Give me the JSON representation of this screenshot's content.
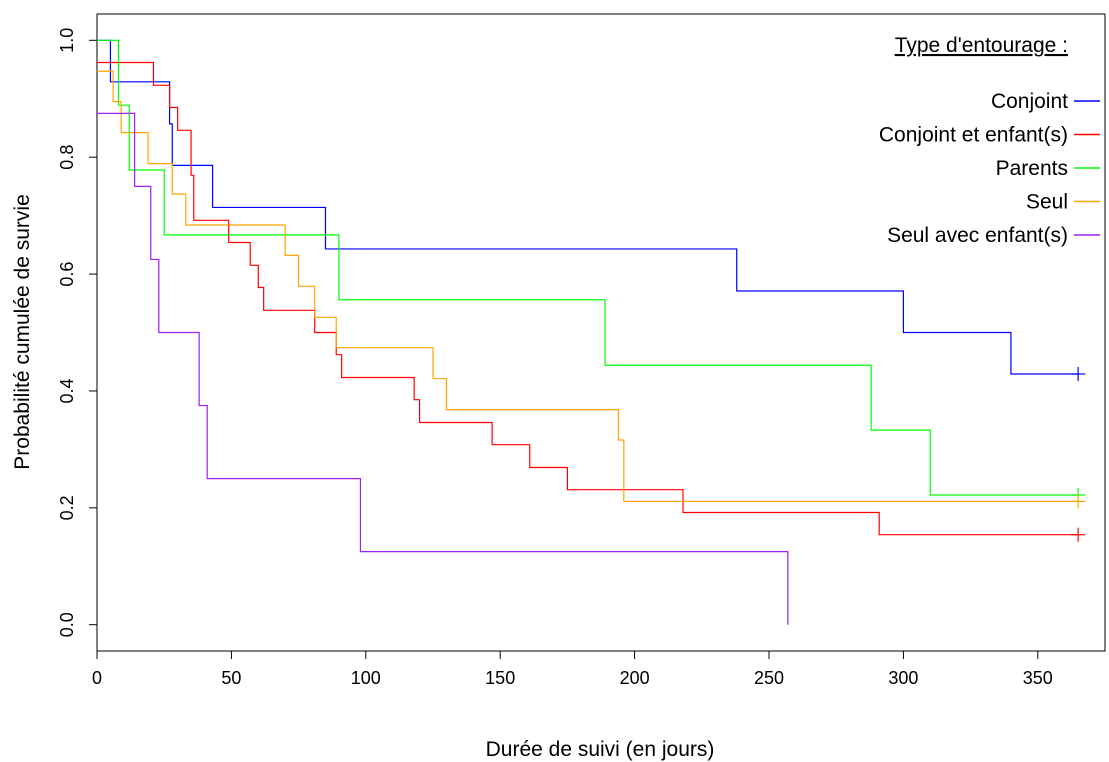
{
  "chart_data": {
    "type": "line",
    "step": true,
    "xlabel": "Durée de suivi (en jours)",
    "ylabel": "Probabilité cumulée de survie",
    "xlim": [
      0,
      375
    ],
    "ylim": [
      -0.045,
      1.045
    ],
    "xticks": [
      0,
      50,
      100,
      150,
      200,
      250,
      300,
      350
    ],
    "yticks": [
      0.0,
      0.2,
      0.4,
      0.6,
      0.8,
      1.0
    ],
    "xtick_labels": [
      "0",
      "50",
      "100",
      "150",
      "200",
      "250",
      "300",
      "350"
    ],
    "ytick_labels": [
      "0.0",
      "0.2",
      "0.4",
      "0.6",
      "0.8",
      "1.0"
    ],
    "grid": false,
    "legend": {
      "title": "Type d'entourage :",
      "position": "top-right"
    },
    "series": [
      {
        "name": "Conjoint",
        "color": "#0000ff",
        "x": [
          0,
          5,
          27,
          28,
          43,
          85,
          238,
          300,
          340,
          365
        ],
        "y": [
          1.0,
          0.929,
          0.857,
          0.786,
          0.714,
          0.643,
          0.571,
          0.5,
          0.429,
          0.429
        ],
        "censor_x": [
          365
        ],
        "censor_y": [
          0.429
        ]
      },
      {
        "name": "Conjoint et enfant(s)",
        "color": "#ff0000",
        "x": [
          0,
          21,
          27,
          30,
          35,
          36,
          49,
          57,
          60,
          62,
          81,
          89,
          90,
          91,
          118,
          119,
          120,
          147,
          161,
          175,
          218,
          291,
          365
        ],
        "y": [
          0.962,
          0.923,
          0.885,
          0.846,
          0.769,
          0.692,
          0.654,
          0.615,
          0.577,
          0.538,
          0.5,
          0.462,
          0.462,
          0.423,
          0.385,
          0.385,
          0.346,
          0.308,
          0.269,
          0.231,
          0.192,
          0.154,
          0.154
        ],
        "censor_x": [
          365
        ],
        "censor_y": [
          0.154
        ]
      },
      {
        "name": "Parents",
        "color": "#00ff00",
        "x": [
          0,
          8,
          12,
          25,
          90,
          189,
          288,
          310,
          365
        ],
        "y": [
          1.0,
          0.889,
          0.778,
          0.667,
          0.556,
          0.444,
          0.333,
          0.222,
          0.222
        ],
        "censor_x": [
          365
        ],
        "censor_y": [
          0.222
        ]
      },
      {
        "name": "Seul",
        "color": "#ffa500",
        "x": [
          0,
          6,
          9,
          19,
          28,
          33,
          70,
          75,
          81,
          89,
          125,
          130,
          194,
          196,
          365
        ],
        "y": [
          0.947,
          0.895,
          0.842,
          0.789,
          0.737,
          0.684,
          0.632,
          0.579,
          0.526,
          0.474,
          0.421,
          0.368,
          0.316,
          0.211,
          0.211
        ],
        "censor_x": [
          365
        ],
        "censor_y": [
          0.211
        ]
      },
      {
        "name": "Seul avec enfant(s)",
        "color": "#a020f0",
        "x": [
          0,
          14,
          20,
          23,
          38,
          41,
          98,
          257,
          257
        ],
        "y": [
          0.875,
          0.75,
          0.625,
          0.5,
          0.375,
          0.25,
          0.125,
          0.125,
          0.0
        ],
        "censor_x": [],
        "censor_y": []
      }
    ]
  }
}
